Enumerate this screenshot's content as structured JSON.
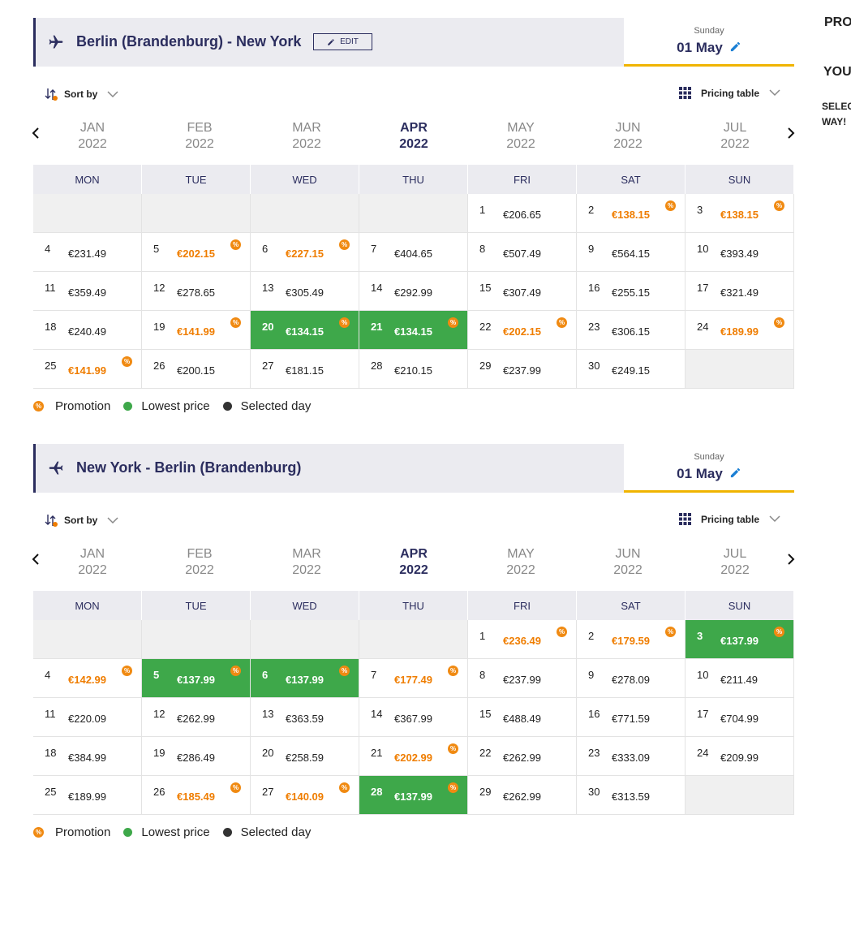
{
  "sort_label": "Sort by",
  "pricing_label": "Pricing table",
  "promo_icon": "%",
  "weekdays": [
    "MON",
    "TUE",
    "WED",
    "THU",
    "FRI",
    "SAT",
    "SUN"
  ],
  "legend": {
    "promotion": "Promotion",
    "lowest": "Lowest price",
    "selected": "Selected day"
  },
  "sidebar": {
    "promo": "PRO",
    "your": "YOUR",
    "select": "SELEC",
    "way": "WAY!"
  },
  "sections": [
    {
      "title": "Berlin (Brandenburg) - New York",
      "edit": "EDIT",
      "date": {
        "weekday": "Sunday",
        "day": "01 May"
      },
      "months": [
        {
          "name": "JAN",
          "year": "2022"
        },
        {
          "name": "FEB",
          "year": "2022"
        },
        {
          "name": "MAR",
          "year": "2022"
        },
        {
          "name": "APR",
          "year": "2022",
          "selected": true
        },
        {
          "name": "MAY",
          "year": "2022"
        },
        {
          "name": "JUN",
          "year": "2022"
        },
        {
          "name": "JUL",
          "year": "2022"
        }
      ],
      "days": [
        {
          "n": 1,
          "p": "€206.65"
        },
        {
          "n": 2,
          "p": "€138.15",
          "promo": true
        },
        {
          "n": 3,
          "p": "€138.15",
          "promo": true
        },
        {
          "n": 4,
          "p": "€231.49"
        },
        {
          "n": 5,
          "p": "€202.15",
          "promo": true
        },
        {
          "n": 6,
          "p": "€227.15",
          "promo": true
        },
        {
          "n": 7,
          "p": "€404.65"
        },
        {
          "n": 8,
          "p": "€507.49"
        },
        {
          "n": 9,
          "p": "€564.15"
        },
        {
          "n": 10,
          "p": "€393.49"
        },
        {
          "n": 11,
          "p": "€359.49"
        },
        {
          "n": 12,
          "p": "€278.65"
        },
        {
          "n": 13,
          "p": "€305.49"
        },
        {
          "n": 14,
          "p": "€292.99"
        },
        {
          "n": 15,
          "p": "€307.49"
        },
        {
          "n": 16,
          "p": "€255.15"
        },
        {
          "n": 17,
          "p": "€321.49"
        },
        {
          "n": 18,
          "p": "€240.49"
        },
        {
          "n": 19,
          "p": "€141.99",
          "promo": true
        },
        {
          "n": 20,
          "p": "€134.15",
          "promo": true,
          "lowest": true
        },
        {
          "n": 21,
          "p": "€134.15",
          "promo": true,
          "lowest": true
        },
        {
          "n": 22,
          "p": "€202.15",
          "promo": true
        },
        {
          "n": 23,
          "p": "€306.15"
        },
        {
          "n": 24,
          "p": "€189.99",
          "promo": true
        },
        {
          "n": 25,
          "p": "€141.99",
          "promo": true
        },
        {
          "n": 26,
          "p": "€200.15"
        },
        {
          "n": 27,
          "p": "€181.15"
        },
        {
          "n": 28,
          "p": "€210.15"
        },
        {
          "n": 29,
          "p": "€237.99"
        },
        {
          "n": 30,
          "p": "€249.15"
        }
      ]
    },
    {
      "title": "New York - Berlin (Brandenburg)",
      "date": {
        "weekday": "Sunday",
        "day": "01 May"
      },
      "months": [
        {
          "name": "JAN",
          "year": "2022"
        },
        {
          "name": "FEB",
          "year": "2022"
        },
        {
          "name": "MAR",
          "year": "2022"
        },
        {
          "name": "APR",
          "year": "2022",
          "selected": true
        },
        {
          "name": "MAY",
          "year": "2022"
        },
        {
          "name": "JUN",
          "year": "2022"
        },
        {
          "name": "JUL",
          "year": "2022"
        }
      ],
      "days": [
        {
          "n": 1,
          "p": "€236.49",
          "promo": true
        },
        {
          "n": 2,
          "p": "€179.59",
          "promo": true
        },
        {
          "n": 3,
          "p": "€137.99",
          "promo": true,
          "lowest": true
        },
        {
          "n": 4,
          "p": "€142.99",
          "promo": true
        },
        {
          "n": 5,
          "p": "€137.99",
          "promo": true,
          "lowest": true
        },
        {
          "n": 6,
          "p": "€137.99",
          "promo": true,
          "lowest": true
        },
        {
          "n": 7,
          "p": "€177.49",
          "promo": true
        },
        {
          "n": 8,
          "p": "€237.99"
        },
        {
          "n": 9,
          "p": "€278.09"
        },
        {
          "n": 10,
          "p": "€211.49"
        },
        {
          "n": 11,
          "p": "€220.09"
        },
        {
          "n": 12,
          "p": "€262.99"
        },
        {
          "n": 13,
          "p": "€363.59"
        },
        {
          "n": 14,
          "p": "€367.99"
        },
        {
          "n": 15,
          "p": "€488.49"
        },
        {
          "n": 16,
          "p": "€771.59"
        },
        {
          "n": 17,
          "p": "€704.99"
        },
        {
          "n": 18,
          "p": "€384.99"
        },
        {
          "n": 19,
          "p": "€286.49"
        },
        {
          "n": 20,
          "p": "€258.59"
        },
        {
          "n": 21,
          "p": "€202.99",
          "promo": true
        },
        {
          "n": 22,
          "p": "€262.99"
        },
        {
          "n": 23,
          "p": "€333.09"
        },
        {
          "n": 24,
          "p": "€209.99"
        },
        {
          "n": 25,
          "p": "€189.99"
        },
        {
          "n": 26,
          "p": "€185.49",
          "promo": true
        },
        {
          "n": 27,
          "p": "€140.09",
          "promo": true
        },
        {
          "n": 28,
          "p": "€137.99",
          "promo": true,
          "lowest": true
        },
        {
          "n": 29,
          "p": "€262.99"
        },
        {
          "n": 30,
          "p": "€313.59"
        }
      ]
    }
  ]
}
